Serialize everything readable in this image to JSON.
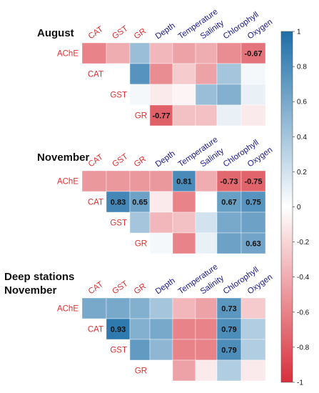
{
  "chart_data": {
    "type": "heatmap",
    "colorbar": {
      "range": [
        -1,
        1
      ],
      "ticks": [
        "1",
        "0.8",
        "0.6",
        "0.4",
        "0.2",
        "0",
        "-0.2",
        "-0.4",
        "-0.6",
        "-0.8",
        "-1"
      ],
      "color_neg": "#d7303b",
      "color_mid": "#ffffff",
      "color_pos": "#1e6fa8"
    },
    "panels": [
      {
        "title": "August",
        "rows": [
          "AChE",
          "CAT",
          "GST",
          "GR"
        ],
        "columns": [
          "CAT",
          "GST",
          "GR",
          "Depth",
          "Temperature",
          "Salinity",
          "Chlorophyll",
          "Oxygen"
        ],
        "red_columns": [
          "CAT",
          "GST",
          "GR"
        ],
        "values": [
          [
            -0.6,
            -0.4,
            0.45,
            -0.35,
            -0.45,
            -0.4,
            -0.55,
            -0.67
          ],
          [
            null,
            0.0,
            0.75,
            -0.55,
            -0.25,
            -0.45,
            0.4,
            0.05
          ],
          [
            null,
            null,
            0.05,
            -0.1,
            -0.05,
            0.45,
            0.55,
            0.1
          ],
          [
            null,
            null,
            null,
            -0.77,
            -0.3,
            -0.3,
            0.1,
            -0.1
          ]
        ],
        "labels": [
          [
            null,
            null,
            null,
            null,
            null,
            null,
            null,
            "-0.67"
          ],
          [
            null,
            null,
            null,
            null,
            null,
            null,
            null,
            null
          ],
          [
            null,
            null,
            null,
            null,
            null,
            null,
            null,
            null
          ],
          [
            null,
            null,
            null,
            "-0.77",
            null,
            null,
            null,
            null
          ]
        ]
      },
      {
        "title": "November",
        "rows": [
          "AChE",
          "CAT",
          "GST",
          "GR"
        ],
        "columns": [
          "CAT",
          "GST",
          "GR",
          "Depth",
          "Temperature",
          "Salinity",
          "Chlorophyll",
          "Oxygen"
        ],
        "red_columns": [
          "CAT",
          "GST",
          "GR"
        ],
        "values": [
          [
            -0.5,
            -0.5,
            -0.5,
            -0.5,
            0.81,
            -0.4,
            -0.73,
            -0.75
          ],
          [
            null,
            0.83,
            0.65,
            -0.1,
            -0.6,
            0.0,
            0.67,
            0.75
          ],
          [
            null,
            null,
            0.4,
            -0.35,
            -0.3,
            0.2,
            0.6,
            0.65
          ],
          [
            null,
            null,
            null,
            0.05,
            -0.6,
            0.1,
            0.65,
            0.63
          ]
        ],
        "labels": [
          [
            null,
            null,
            null,
            null,
            "0.81",
            null,
            "-0.73",
            "-0.75"
          ],
          [
            null,
            "0.83",
            "0.65",
            null,
            null,
            null,
            "0.67",
            "0.75"
          ],
          [
            null,
            null,
            null,
            null,
            null,
            null,
            null,
            null
          ],
          [
            null,
            null,
            null,
            null,
            null,
            null,
            null,
            "0.63"
          ]
        ]
      },
      {
        "title": "Deep stations\nNovember",
        "rows": [
          "AChE",
          "CAT",
          "GST",
          "GR"
        ],
        "columns": [
          "CAT",
          "GST",
          "GR",
          "Depth",
          "Temperature",
          "Salinity",
          "Chlorophyll",
          "Oxygen"
        ],
        "red_columns": [
          "CAT",
          "GST",
          "GR"
        ],
        "values": [
          [
            0.6,
            0.6,
            0.55,
            0.4,
            -0.35,
            -0.45,
            0.73,
            -0.25
          ],
          [
            null,
            0.93,
            0.55,
            0.6,
            -0.6,
            -0.6,
            0.79,
            0.35
          ],
          [
            null,
            null,
            0.7,
            0.5,
            -0.6,
            -0.6,
            0.79,
            0.35
          ],
          [
            null,
            null,
            null,
            0.0,
            -0.45,
            -0.1,
            0.35,
            -0.1
          ]
        ],
        "labels": [
          [
            null,
            null,
            null,
            null,
            null,
            null,
            "0.73",
            null
          ],
          [
            null,
            "0.93",
            null,
            null,
            null,
            null,
            "0.79",
            null
          ],
          [
            null,
            null,
            null,
            null,
            null,
            null,
            "0.79",
            null
          ],
          [
            null,
            null,
            null,
            null,
            null,
            null,
            null,
            null
          ]
        ]
      }
    ]
  }
}
